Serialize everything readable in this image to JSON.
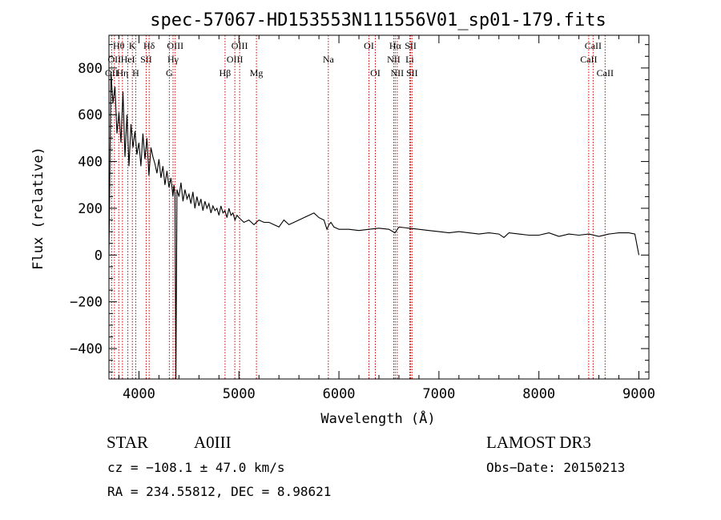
{
  "chart_data": {
    "type": "line",
    "title": "spec-57067-HD153553N111556V01_sp01-179.fits",
    "xlabel": "Wavelength (Å)",
    "ylabel": "Flux (relative)",
    "xlim": [
      3700,
      9100
    ],
    "ylim": [
      -530,
      940
    ],
    "xticks": [
      4000,
      5000,
      6000,
      7000,
      8000,
      9000
    ],
    "yticks": [
      -400,
      -200,
      0,
      200,
      400,
      600,
      800
    ],
    "series": [
      {
        "x": [
          3700,
          3720,
          3740,
          3760,
          3780,
          3800,
          3820,
          3840,
          3860,
          3880,
          3900,
          3920,
          3940,
          3960,
          3980,
          4000,
          4020,
          4040,
          4060,
          4080,
          4100,
          4120,
          4140,
          4160,
          4180,
          4200,
          4220,
          4240,
          4260,
          4280,
          4300,
          4320,
          4340,
          4350,
          4360,
          4370,
          4380,
          4400,
          4420,
          4440,
          4460,
          4480,
          4500,
          4520,
          4540,
          4560,
          4580,
          4600,
          4620,
          4640,
          4660,
          4680,
          4700,
          4720,
          4740,
          4760,
          4780,
          4800,
          4820,
          4840,
          4860,
          4880,
          4900,
          4920,
          4940,
          4960,
          4980,
          5000,
          5050,
          5100,
          5150,
          5200,
          5250,
          5300,
          5350,
          5400,
          5450,
          5500,
          5550,
          5600,
          5650,
          5700,
          5750,
          5800,
          5850,
          5880,
          5900,
          5920,
          5950,
          6000,
          6100,
          6200,
          6300,
          6400,
          6500,
          6560,
          6600,
          6700,
          6800,
          6900,
          7000,
          7100,
          7200,
          7300,
          7400,
          7500,
          7600,
          7650,
          7700,
          7800,
          7900,
          8000,
          8100,
          8200,
          8300,
          8400,
          8500,
          8600,
          8700,
          8800,
          8900,
          8960,
          9000
        ],
        "y": [
          0,
          780,
          650,
          720,
          520,
          610,
          480,
          700,
          420,
          600,
          380,
          560,
          460,
          530,
          430,
          480,
          380,
          520,
          410,
          500,
          340,
          460,
          420,
          390,
          350,
          410,
          330,
          380,
          300,
          360,
          290,
          330,
          250,
          300,
          260,
          -530,
          280,
          250,
          310,
          230,
          280,
          240,
          260,
          220,
          270,
          200,
          250,
          210,
          240,
          190,
          230,
          200,
          220,
          180,
          210,
          190,
          200,
          170,
          210,
          180,
          190,
          160,
          200,
          170,
          180,
          150,
          170,
          160,
          140,
          150,
          130,
          150,
          140,
          140,
          130,
          120,
          150,
          130,
          140,
          150,
          160,
          170,
          180,
          160,
          150,
          110,
          130,
          140,
          120,
          110,
          110,
          105,
          110,
          115,
          110,
          95,
          120,
          115,
          110,
          105,
          100,
          95,
          100,
          95,
          90,
          95,
          90,
          75,
          95,
          90,
          85,
          85,
          95,
          80,
          90,
          85,
          90,
          80,
          90,
          95,
          95,
          90,
          0
        ]
      }
    ],
    "lines": [
      {
        "name": "OII",
        "wave": 3727,
        "row": 2
      },
      {
        "name": "Hθ",
        "wave": 3798,
        "row": 0
      },
      {
        "name": "OII",
        "wave": 3755,
        "row": 1
      },
      {
        "name": "Hη",
        "wave": 3835,
        "row": 2
      },
      {
        "name": "HeI",
        "wave": 3889,
        "row": 1
      },
      {
        "name": "K",
        "wave": 3934,
        "row": 0
      },
      {
        "name": "H",
        "wave": 3968,
        "row": 2
      },
      {
        "name": "SII",
        "wave": 4072,
        "row": 1
      },
      {
        "name": "Hδ",
        "wave": 4102,
        "row": 0
      },
      {
        "name": "G",
        "wave": 4304,
        "row": 2
      },
      {
        "name": "Hγ",
        "wave": 4341,
        "row": 1
      },
      {
        "name": "OIII",
        "wave": 4363,
        "row": 0
      },
      {
        "name": "Hβ",
        "wave": 4861,
        "row": 2
      },
      {
        "name": "OIII",
        "wave": 4959,
        "row": 1
      },
      {
        "name": "OIII",
        "wave": 5007,
        "row": 0
      },
      {
        "name": "Mg",
        "wave": 5175,
        "row": 2
      },
      {
        "name": "Na",
        "wave": 5894,
        "row": 1
      },
      {
        "name": "OI",
        "wave": 6300,
        "row": 0
      },
      {
        "name": "OI",
        "wave": 6364,
        "row": 2
      },
      {
        "name": "NII",
        "wave": 6548,
        "row": 1
      },
      {
        "name": "Hα",
        "wave": 6563,
        "row": 0
      },
      {
        "name": "NII",
        "wave": 6583,
        "row": 2
      },
      {
        "name": "Li",
        "wave": 6708,
        "row": 1
      },
      {
        "name": "SII",
        "wave": 6717,
        "row": 0
      },
      {
        "name": "SII",
        "wave": 6731,
        "row": 2
      },
      {
        "name": "CaII",
        "wave": 8498,
        "row": 1
      },
      {
        "name": "CaII",
        "wave": 8542,
        "row": 0
      },
      {
        "name": "CaII",
        "wave": 8662,
        "row": 2
      }
    ]
  },
  "info": {
    "object_class": "STAR",
    "subclass": "A0III",
    "survey": "LAMOST DR3",
    "cz": "cz = −108.1 ± 47.0 km/s",
    "obs_date": "Obs−Date: 20150213",
    "coords": "RA = 234.55812, DEC =   8.98621"
  },
  "colors": {
    "spectrum": "#000000",
    "line_markers": "#cc0000",
    "axes": "#000000"
  }
}
